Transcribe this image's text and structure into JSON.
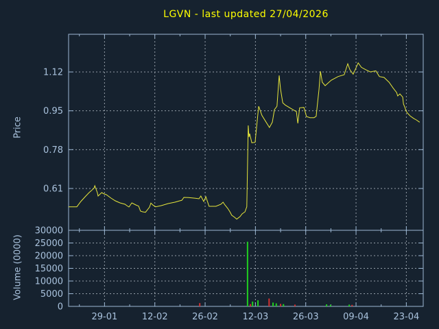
{
  "title": "LGVN - last updated 27/04/2026",
  "colors": {
    "background": "#16222f",
    "border": "#9db8d4",
    "grid": "#959fa9",
    "text": "#aac3de",
    "title_text": "#ffff00",
    "price_line": "#e8e73c",
    "volume_up": "#1fcf1f",
    "volume_down": "#d03232"
  },
  "chart_data": [
    {
      "type": "line",
      "panel": "price",
      "title": "LGVN - last updated 27/04/2026",
      "ylabel": "Price",
      "ylim": [
        0.427,
        1.285
      ],
      "grid": true,
      "yticks": [
        {
          "value": 0.61,
          "label": "0.61"
        },
        {
          "value": 0.78,
          "label": "0.78"
        },
        {
          "value": 0.95,
          "label": "0.95"
        },
        {
          "value": 1.12,
          "label": "1.12"
        }
      ],
      "x_axis": {
        "unit": "trading days (day 0 = 19-01-2026)",
        "xlim_days": [
          0,
          98.7
        ],
        "ticks": [
          {
            "day": 10,
            "label": "29-01"
          },
          {
            "day": 24,
            "label": "12-02"
          },
          {
            "day": 38,
            "label": "26-02"
          },
          {
            "day": 52,
            "label": "12-03"
          },
          {
            "day": 66,
            "label": "26-03"
          },
          {
            "day": 80,
            "label": "09-04"
          },
          {
            "day": 94,
            "label": "23-04"
          }
        ],
        "minor_tick_days": [
          3,
          17,
          31,
          45,
          59,
          73,
          87
        ]
      },
      "series": [
        {
          "name": "LGVN close price",
          "points": [
            [
              0,
              0.53
            ],
            [
              2.3,
              0.53
            ],
            [
              3.4,
              0.553
            ],
            [
              4.8,
              0.577
            ],
            [
              5.7,
              0.592
            ],
            [
              6.3,
              0.6
            ],
            [
              7.1,
              0.612
            ],
            [
              7.3,
              0.622
            ],
            [
              8.0,
              0.592
            ],
            [
              8.2,
              0.577
            ],
            [
              9.2,
              0.592
            ],
            [
              9.9,
              0.586
            ],
            [
              10.5,
              0.583
            ],
            [
              11.8,
              0.568
            ],
            [
              13.0,
              0.556
            ],
            [
              14.3,
              0.547
            ],
            [
              15.7,
              0.541
            ],
            [
              16.2,
              0.535
            ],
            [
              16.8,
              0.529
            ],
            [
              17.6,
              0.547
            ],
            [
              18.7,
              0.538
            ],
            [
              19.5,
              0.533
            ],
            [
              20.0,
              0.511
            ],
            [
              20.6,
              0.508
            ],
            [
              21.4,
              0.506
            ],
            [
              22.5,
              0.528
            ],
            [
              22.9,
              0.546
            ],
            [
              23.5,
              0.537
            ],
            [
              24.2,
              0.53
            ],
            [
              25.8,
              0.535
            ],
            [
              27.7,
              0.544
            ],
            [
              29.6,
              0.55
            ],
            [
              30.9,
              0.556
            ],
            [
              31.5,
              0.558
            ],
            [
              32.1,
              0.571
            ],
            [
              33.4,
              0.57
            ],
            [
              35.3,
              0.567
            ],
            [
              36.3,
              0.565
            ],
            [
              36.8,
              0.577
            ],
            [
              37.6,
              0.553
            ],
            [
              38.2,
              0.574
            ],
            [
              39.1,
              0.532
            ],
            [
              41.0,
              0.532
            ],
            [
              42.4,
              0.541
            ],
            [
              43.0,
              0.55
            ],
            [
              43.5,
              0.538
            ],
            [
              44.3,
              0.523
            ],
            [
              44.9,
              0.508
            ],
            [
              45.4,
              0.493
            ],
            [
              46.2,
              0.484
            ],
            [
              46.8,
              0.476
            ],
            [
              47.7,
              0.487
            ],
            [
              48.3,
              0.499
            ],
            [
              49.1,
              0.508
            ],
            [
              49.3,
              0.517
            ],
            [
              49.6,
              0.53
            ],
            [
              50.0,
              0.886
            ],
            [
              50.2,
              0.835
            ],
            [
              50.4,
              0.85
            ],
            [
              51.0,
              0.81
            ],
            [
              51.9,
              0.812
            ],
            [
              52.9,
              0.97
            ],
            [
              53.8,
              0.93
            ],
            [
              54.8,
              0.905
            ],
            [
              55.9,
              0.877
            ],
            [
              56.7,
              0.9
            ],
            [
              57.3,
              0.955
            ],
            [
              58.0,
              0.97
            ],
            [
              58.6,
              1.105
            ],
            [
              59.0,
              1.045
            ],
            [
              59.6,
              0.985
            ],
            [
              60.3,
              0.975
            ],
            [
              61.9,
              0.96
            ],
            [
              63.0,
              0.95
            ],
            [
              63.4,
              0.947
            ],
            [
              63.8,
              0.895
            ],
            [
              64.3,
              0.963
            ],
            [
              65.5,
              0.965
            ],
            [
              66.2,
              0.925
            ],
            [
              67.2,
              0.92
            ],
            [
              68.3,
              0.92
            ],
            [
              68.9,
              0.926
            ],
            [
              69.7,
              1.045
            ],
            [
              70.1,
              1.123
            ],
            [
              70.6,
              1.075
            ],
            [
              71.4,
              1.06
            ],
            [
              73.1,
              1.084
            ],
            [
              75.0,
              1.1
            ],
            [
              76.7,
              1.108
            ],
            [
              77.7,
              1.156
            ],
            [
              78.3,
              1.13
            ],
            [
              79.2,
              1.11
            ],
            [
              80.6,
              1.16
            ],
            [
              81.5,
              1.14
            ],
            [
              82.7,
              1.13
            ],
            [
              84.0,
              1.12
            ],
            [
              85.5,
              1.125
            ],
            [
              86.5,
              1.1
            ],
            [
              87.8,
              1.096
            ],
            [
              89.2,
              1.075
            ],
            [
              90.3,
              1.05
            ],
            [
              91.3,
              1.03
            ],
            [
              91.6,
              1.015
            ],
            [
              92.2,
              1.024
            ],
            [
              93.0,
              1.01
            ],
            [
              93.2,
              0.98
            ],
            [
              93.6,
              0.965
            ],
            [
              93.9,
              0.95
            ],
            [
              94.3,
              0.94
            ],
            [
              94.7,
              0.934
            ],
            [
              95.1,
              0.927
            ],
            [
              96.0,
              0.917
            ],
            [
              96.8,
              0.91
            ],
            [
              97.7,
              0.9
            ]
          ]
        }
      ]
    },
    {
      "type": "bar",
      "panel": "volume",
      "ylabel": "Volume (0000)",
      "ylim": [
        0,
        30000
      ],
      "grid": true,
      "yticks": [
        {
          "value": 0,
          "label": "0"
        },
        {
          "value": 5000,
          "label": "5000"
        },
        {
          "value": 10000,
          "label": "10000"
        },
        {
          "value": 15000,
          "label": "15000"
        },
        {
          "value": 20000,
          "label": "20000"
        },
        {
          "value": 25000,
          "label": "25000"
        },
        {
          "value": 30000,
          "label": "30000"
        }
      ],
      "bars": [
        {
          "day": 36.5,
          "volume": 1300,
          "direction": "down"
        },
        {
          "day": 49.8,
          "volume": 25500,
          "direction": "up"
        },
        {
          "day": 50.6,
          "volume": 900,
          "direction": "down"
        },
        {
          "day": 51.2,
          "volume": 1900,
          "direction": "up"
        },
        {
          "day": 52.7,
          "volume": 2400,
          "direction": "up"
        },
        {
          "day": 55.8,
          "volume": 3100,
          "direction": "down"
        },
        {
          "day": 56.9,
          "volume": 1500,
          "direction": "up"
        },
        {
          "day": 57.8,
          "volume": 1200,
          "direction": "up"
        },
        {
          "day": 59.0,
          "volume": 1000,
          "direction": "down"
        },
        {
          "day": 59.8,
          "volume": 900,
          "direction": "up"
        },
        {
          "day": 63.0,
          "volume": 700,
          "direction": "down"
        },
        {
          "day": 71.8,
          "volume": 800,
          "direction": "up"
        },
        {
          "day": 72.9,
          "volume": 600,
          "direction": "up"
        },
        {
          "day": 78.1,
          "volume": 700,
          "direction": "up"
        },
        {
          "day": 78.9,
          "volume": 600,
          "direction": "down"
        }
      ]
    }
  ]
}
